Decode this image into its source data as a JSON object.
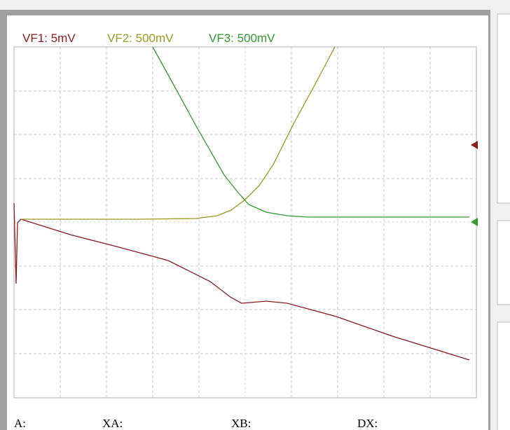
{
  "header": {
    "channels": [
      "VF1: 5mV",
      "VF2: 500mV",
      "VF3: 500mV"
    ]
  },
  "footer": {
    "labels": [
      "A:",
      "XA:",
      "XB:",
      "DX:"
    ]
  }
}
